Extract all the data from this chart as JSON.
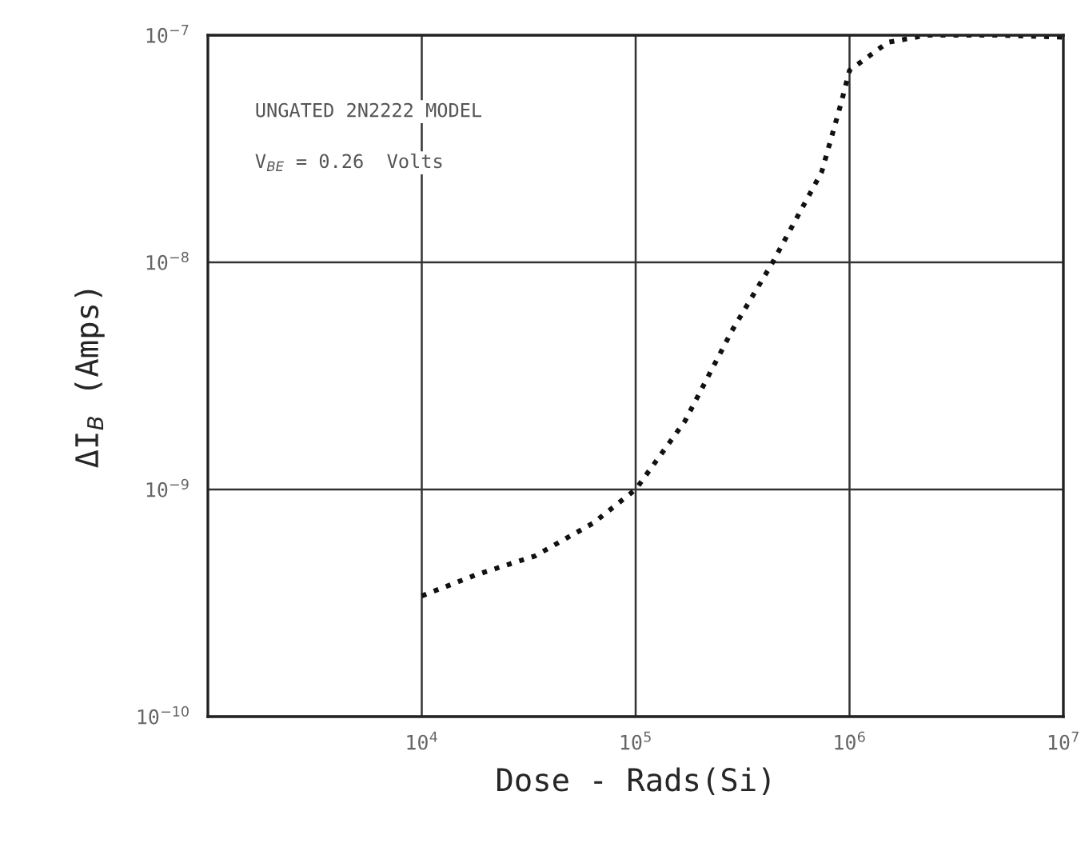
{
  "chart_data": {
    "type": "line",
    "xlabel": "Dose - Rads(Si)",
    "ylabel": "ΔI$_{B}$ (Amps)",
    "log": "xy",
    "grid": true,
    "line_style": "dotted",
    "marker": "none",
    "xlim": [
      1000,
      10000000
    ],
    "ylim": [
      1e-10,
      1e-07
    ],
    "xticks": [
      {
        "value": 10000,
        "label": "10$^{4}$"
      },
      {
        "value": 100000,
        "label": "10$^{5}$"
      },
      {
        "value": 1000000,
        "label": "10$^{6}$"
      },
      {
        "value": 10000000,
        "label": "10$^{7}$"
      }
    ],
    "yticks": [
      {
        "value": 1e-10,
        "label": "10$^{−10}$"
      },
      {
        "value": 1e-09,
        "label": "10$^{−9}$"
      },
      {
        "value": 1e-08,
        "label": "10$^{−8}$"
      },
      {
        "value": 1e-07,
        "label": "10$^{−7}$"
      }
    ],
    "annotations": [
      "UNGATED 2N2222 MODEL",
      "V$_{BE}$ = 0.26  Volts"
    ],
    "x": [
      10000,
      17800,
      33900,
      63100,
      100000,
      170000,
      282000,
      437000,
      741000,
      912000,
      1000000,
      1510000,
      2290000,
      5010000,
      10000000
    ],
    "series": [
      {
        "color": "#111111",
        "values": [
          3.4e-10,
          4.2e-10,
          5.1e-10,
          7.1e-10,
          1e-09,
          2e-09,
          5e-09,
          1e-08,
          2.5e-08,
          5e-08,
          7e-08,
          9.3e-08,
          1e-07,
          1e-07,
          9.8e-08
        ]
      }
    ]
  }
}
